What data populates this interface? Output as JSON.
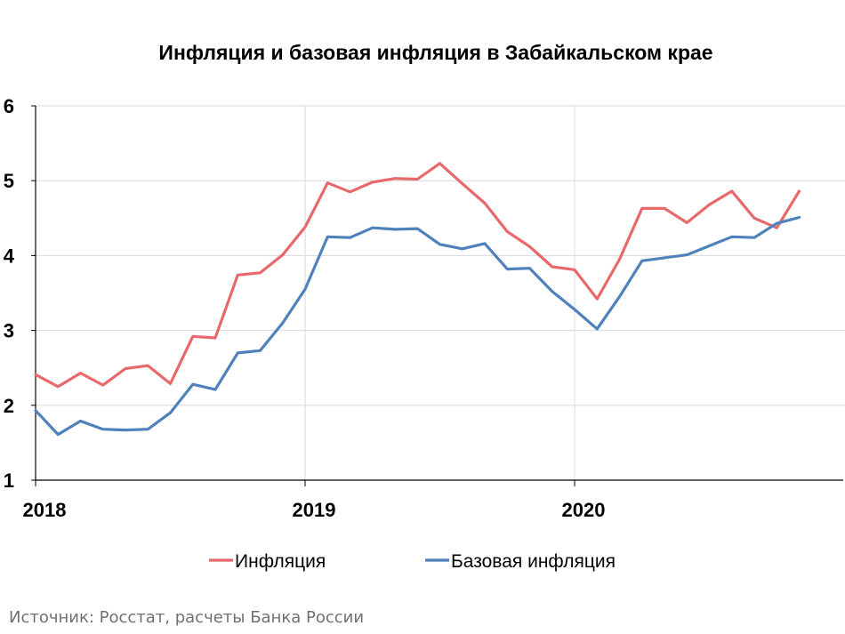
{
  "chart_data": {
    "type": "line",
    "title": "Инфляция и базовая инфляция в Забайкальском крае",
    "xlabel": "",
    "ylabel": "",
    "ylim": [
      1,
      6
    ],
    "yticks": [
      "1",
      "2",
      "3",
      "4",
      "5",
      "6"
    ],
    "xticks": [
      "2018",
      "2019",
      "2020"
    ],
    "x": [
      "2018-01",
      "2018-02",
      "2018-03",
      "2018-04",
      "2018-05",
      "2018-06",
      "2018-07",
      "2018-08",
      "2018-09",
      "2018-10",
      "2018-11",
      "2018-12",
      "2019-01",
      "2019-02",
      "2019-03",
      "2019-04",
      "2019-05",
      "2019-06",
      "2019-07",
      "2019-08",
      "2019-09",
      "2019-10",
      "2019-11",
      "2019-12",
      "2020-01",
      "2020-02",
      "2020-03",
      "2020-04",
      "2020-05",
      "2020-06",
      "2020-07",
      "2020-08",
      "2020-09",
      "2020-10",
      "2020-11"
    ],
    "grid": true,
    "legend_position": "bottom",
    "series": [
      {
        "name": "Инфляция",
        "color": "#E8696B",
        "values": [
          2.41,
          2.25,
          2.43,
          2.27,
          2.49,
          2.53,
          2.29,
          2.92,
          2.9,
          3.74,
          3.77,
          4.01,
          4.38,
          4.97,
          4.85,
          4.98,
          5.03,
          5.02,
          5.23,
          4.96,
          4.7,
          4.32,
          4.12,
          3.85,
          3.81,
          3.42,
          3.95,
          4.63,
          4.63,
          4.44,
          4.68,
          4.86,
          4.5,
          4.37,
          4.86
        ]
      },
      {
        "name": "Базовая инфляция",
        "color": "#4F81BD",
        "values": [
          1.93,
          1.61,
          1.79,
          1.68,
          1.67,
          1.68,
          1.9,
          2.28,
          2.21,
          2.7,
          2.73,
          3.1,
          3.55,
          4.25,
          4.24,
          4.37,
          4.35,
          4.36,
          4.15,
          4.09,
          4.16,
          3.82,
          3.83,
          3.52,
          3.28,
          3.02,
          3.45,
          3.93,
          3.97,
          4.01,
          4.13,
          4.25,
          4.24,
          4.43,
          4.51
        ]
      }
    ]
  },
  "source": "Источник: Росстат, расчеты Банка России"
}
